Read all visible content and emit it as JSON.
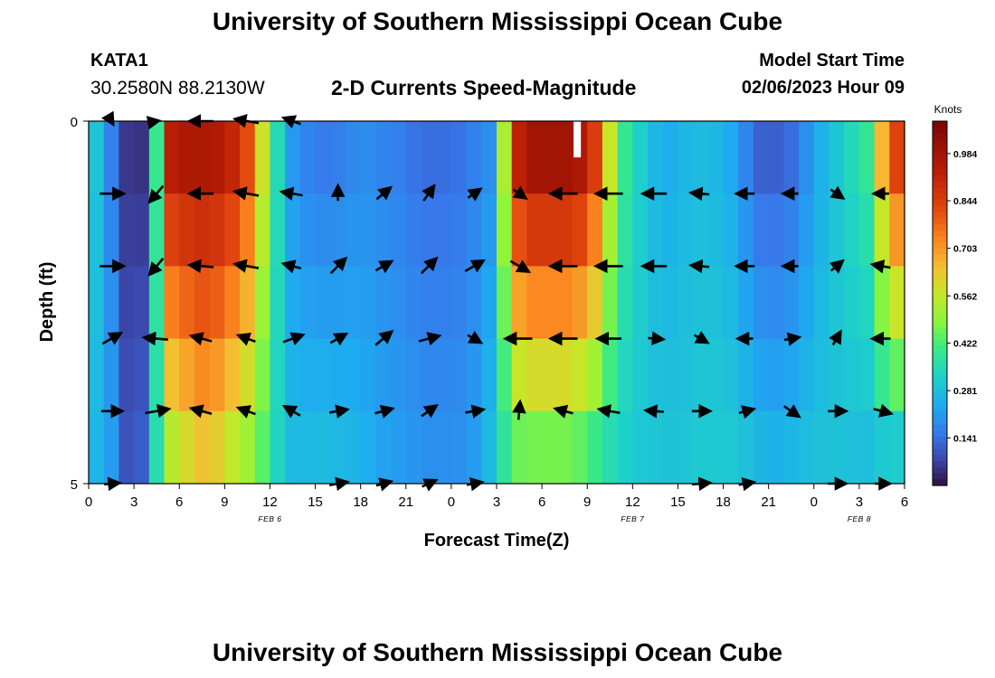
{
  "header": {
    "title": "University of Southern Mississippi Ocean Cube",
    "station_id": "KATA1",
    "station_coords": "30.2580N  88.2130W",
    "model_start_label": "Model Start Time",
    "model_start_value": "02/06/2023 Hour 09"
  },
  "footer": {
    "title": "University of Southern Mississippi Ocean Cube"
  },
  "chart_data": {
    "type": "heatmap",
    "title": "2-D Currents Speed-Magnitude",
    "xlabel": "Forecast Time(Z)",
    "ylabel": "Depth (ft)",
    "ylim": [
      0,
      5
    ],
    "y_ticks": [
      "0",
      "5"
    ],
    "x_ticks": [
      "0",
      "3",
      "6",
      "9",
      "12",
      "15",
      "18",
      "21",
      "0",
      "3",
      "6",
      "9",
      "12",
      "15",
      "18",
      "21",
      "0",
      "3",
      "6"
    ],
    "date_labels": [
      {
        "label": "FEB 6",
        "at_tick": 4
      },
      {
        "label": "FEB 7",
        "at_tick": 12
      },
      {
        "label": "FEB 8",
        "at_tick": 17
      }
    ],
    "x_range_hours": [
      0,
      54
    ],
    "depth_rows": [
      0,
      1,
      2,
      3,
      4,
      5
    ],
    "colorbar": {
      "label": "Knots",
      "min": 0.0,
      "max": 1.08,
      "ticks": [
        "0.984",
        "0.844",
        "0.703",
        "0.562",
        "0.422",
        "0.281",
        "0.141"
      ],
      "tick_values": [
        0.984,
        0.844,
        0.703,
        0.562,
        0.422,
        0.281,
        0.141
      ]
    },
    "speed_profiles": {
      "hours": [
        0,
        1,
        2,
        3,
        4,
        5,
        6,
        7,
        8,
        9,
        10,
        11,
        12,
        13,
        14,
        15,
        16,
        17,
        18,
        19,
        20,
        21,
        22,
        23,
        24,
        25,
        26,
        27,
        28,
        29,
        30,
        31,
        32,
        33,
        34,
        35,
        36,
        37,
        38,
        39,
        40,
        41,
        42,
        43,
        44,
        45,
        46,
        47,
        48,
        49,
        50,
        51,
        52,
        53,
        54
      ],
      "surface": [
        0.3,
        0.16,
        0.05,
        0.04,
        0.4,
        0.98,
        1.0,
        1.0,
        0.99,
        0.95,
        0.85,
        0.6,
        0.35,
        0.2,
        0.16,
        0.14,
        0.15,
        0.17,
        0.18,
        0.17,
        0.16,
        0.14,
        0.13,
        0.13,
        0.14,
        0.16,
        0.18,
        0.55,
        0.98,
        1.05,
        1.05,
        1.05,
        1.02,
        0.9,
        0.6,
        0.4,
        0.32,
        0.26,
        0.24,
        0.26,
        0.27,
        0.26,
        0.23,
        0.16,
        0.1,
        0.1,
        0.12,
        0.18,
        0.25,
        0.3,
        0.35,
        0.4,
        0.7,
        0.9,
        0.95
      ],
      "bottom": [
        0.26,
        0.22,
        0.1,
        0.12,
        0.35,
        0.5,
        0.55,
        0.6,
        0.58,
        0.52,
        0.48,
        0.42,
        0.33,
        0.28,
        0.28,
        0.29,
        0.28,
        0.27,
        0.25,
        0.23,
        0.22,
        0.21,
        0.2,
        0.2,
        0.2,
        0.22,
        0.28,
        0.36,
        0.4,
        0.4,
        0.4,
        0.4,
        0.38,
        0.35,
        0.33,
        0.31,
        0.3,
        0.3,
        0.3,
        0.3,
        0.31,
        0.31,
        0.31,
        0.3,
        0.28,
        0.27,
        0.28,
        0.29,
        0.29,
        0.29,
        0.28,
        0.27,
        0.26,
        0.25,
        0.25
      ]
    },
    "vector_times": [
      1.5,
      4.5,
      7.5,
      10.5,
      13.5,
      16.5,
      19.5,
      22.5,
      25.5,
      28.5,
      31.5,
      34.5,
      37.5,
      40.5,
      43.5,
      46.5,
      49.5,
      52.5
    ],
    "vectors": [
      [
        [
          -60,
          0.2
        ],
        [
          10,
          0.1
        ],
        [
          180,
          0.8
        ],
        [
          170,
          0.8
        ],
        [
          160,
          0.6
        ],
        [
          null,
          0
        ],
        [
          null,
          0
        ],
        [
          null,
          0
        ],
        [
          null,
          0
        ],
        [
          null,
          0
        ],
        [
          null,
          0
        ],
        [
          null,
          0
        ],
        [
          null,
          0
        ],
        [
          null,
          0
        ],
        [
          null,
          0
        ],
        [
          null,
          0
        ],
        [
          null,
          0
        ],
        [
          null,
          0
        ]
      ],
      [
        [
          0,
          0.8
        ],
        [
          -130,
          0.7
        ],
        [
          180,
          0.8
        ],
        [
          170,
          0.8
        ],
        [
          170,
          0.7
        ],
        [
          90,
          0.5
        ],
        [
          40,
          0.6
        ],
        [
          55,
          0.6
        ],
        [
          35,
          0.5
        ],
        [
          -35,
          0.5
        ],
        [
          180,
          0.9
        ],
        [
          180,
          0.9
        ],
        [
          180,
          0.8
        ],
        [
          175,
          0.6
        ],
        [
          180,
          0.6
        ],
        [
          180,
          0.5
        ],
        [
          -35,
          0.5
        ],
        [
          180,
          0.5
        ]
      ],
      [
        [
          0,
          0.8
        ],
        [
          -130,
          0.7
        ],
        [
          175,
          0.8
        ],
        [
          170,
          0.8
        ],
        [
          165,
          0.6
        ],
        [
          45,
          0.7
        ],
        [
          30,
          0.6
        ],
        [
          45,
          0.7
        ],
        [
          30,
          0.7
        ],
        [
          -30,
          0.7
        ],
        [
          180,
          0.9
        ],
        [
          180,
          0.9
        ],
        [
          180,
          0.8
        ],
        [
          175,
          0.6
        ],
        [
          180,
          0.6
        ],
        [
          180,
          0.5
        ],
        [
          40,
          0.5
        ],
        [
          170,
          0.6
        ]
      ],
      [
        [
          30,
          0.7
        ],
        [
          175,
          0.8
        ],
        [
          165,
          0.7
        ],
        [
          160,
          0.6
        ],
        [
          20,
          0.7
        ],
        [
          30,
          0.6
        ],
        [
          40,
          0.7
        ],
        [
          15,
          0.7
        ],
        [
          -30,
          0.5
        ],
        [
          180,
          0.9
        ],
        [
          180,
          0.9
        ],
        [
          180,
          0.8
        ],
        [
          -5,
          0.5
        ],
        [
          -30,
          0.5
        ],
        [
          180,
          0.5
        ],
        [
          10,
          0.5
        ],
        [
          60,
          0.5
        ],
        [
          180,
          0.6
        ]
      ],
      [
        [
          0,
          0.7
        ],
        [
          10,
          0.8
        ],
        [
          165,
          0.7
        ],
        [
          160,
          0.6
        ],
        [
          150,
          0.6
        ],
        [
          10,
          0.6
        ],
        [
          15,
          0.6
        ],
        [
          35,
          0.6
        ],
        [
          10,
          0.6
        ],
        [
          85,
          0.6
        ],
        [
          165,
          0.6
        ],
        [
          170,
          0.7
        ],
        [
          175,
          0.6
        ],
        [
          0,
          0.6
        ],
        [
          15,
          0.5
        ],
        [
          -35,
          0.6
        ],
        [
          0,
          0.6
        ],
        [
          -15,
          0.6
        ]
      ],
      [
        [
          5,
          0.5
        ],
        [
          null,
          0
        ],
        [
          null,
          0
        ],
        [
          null,
          0
        ],
        [
          null,
          0
        ],
        [
          10,
          0.6
        ],
        [
          15,
          0.5
        ],
        [
          25,
          0.5
        ],
        [
          10,
          0.5
        ],
        [
          null,
          0
        ],
        [
          null,
          0
        ],
        [
          null,
          0
        ],
        [
          null,
          0
        ],
        [
          5,
          0.6
        ],
        [
          10,
          0.5
        ],
        [
          null,
          0
        ],
        [
          0,
          0.6
        ],
        [
          0,
          0.5
        ]
      ]
    ]
  }
}
